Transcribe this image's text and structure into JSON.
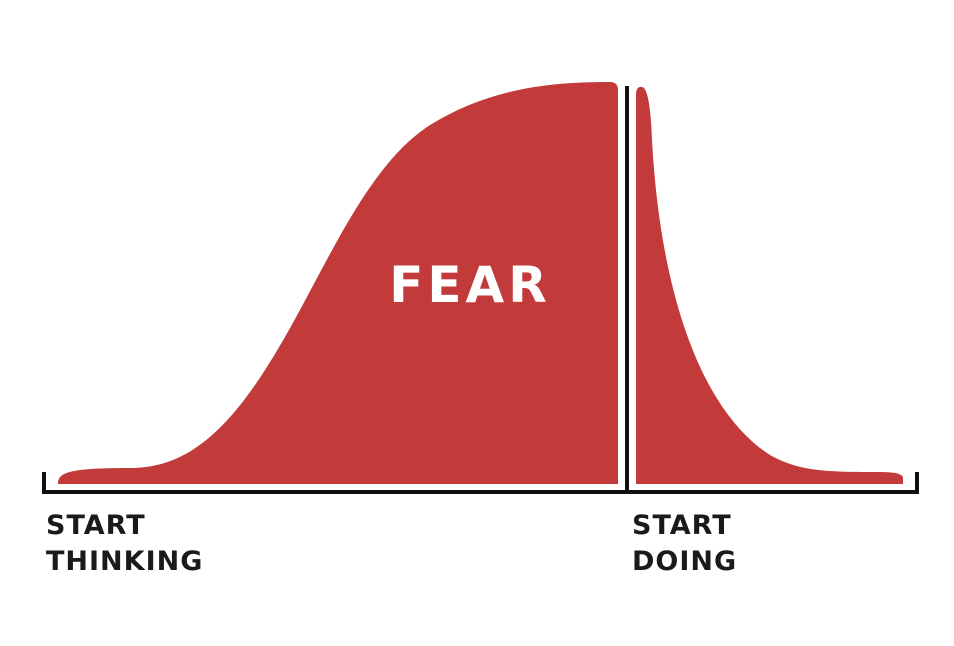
{
  "diagram": {
    "fear_label": "FEAR",
    "left_label_line1": "START",
    "left_label_line2": "THINKING",
    "right_label_line1": "START",
    "right_label_line2": "DOING",
    "colors": {
      "fear_fill": "#c23b3a",
      "axis": "#111111",
      "text": "#1a1a1a",
      "background": "#ffffff"
    }
  }
}
